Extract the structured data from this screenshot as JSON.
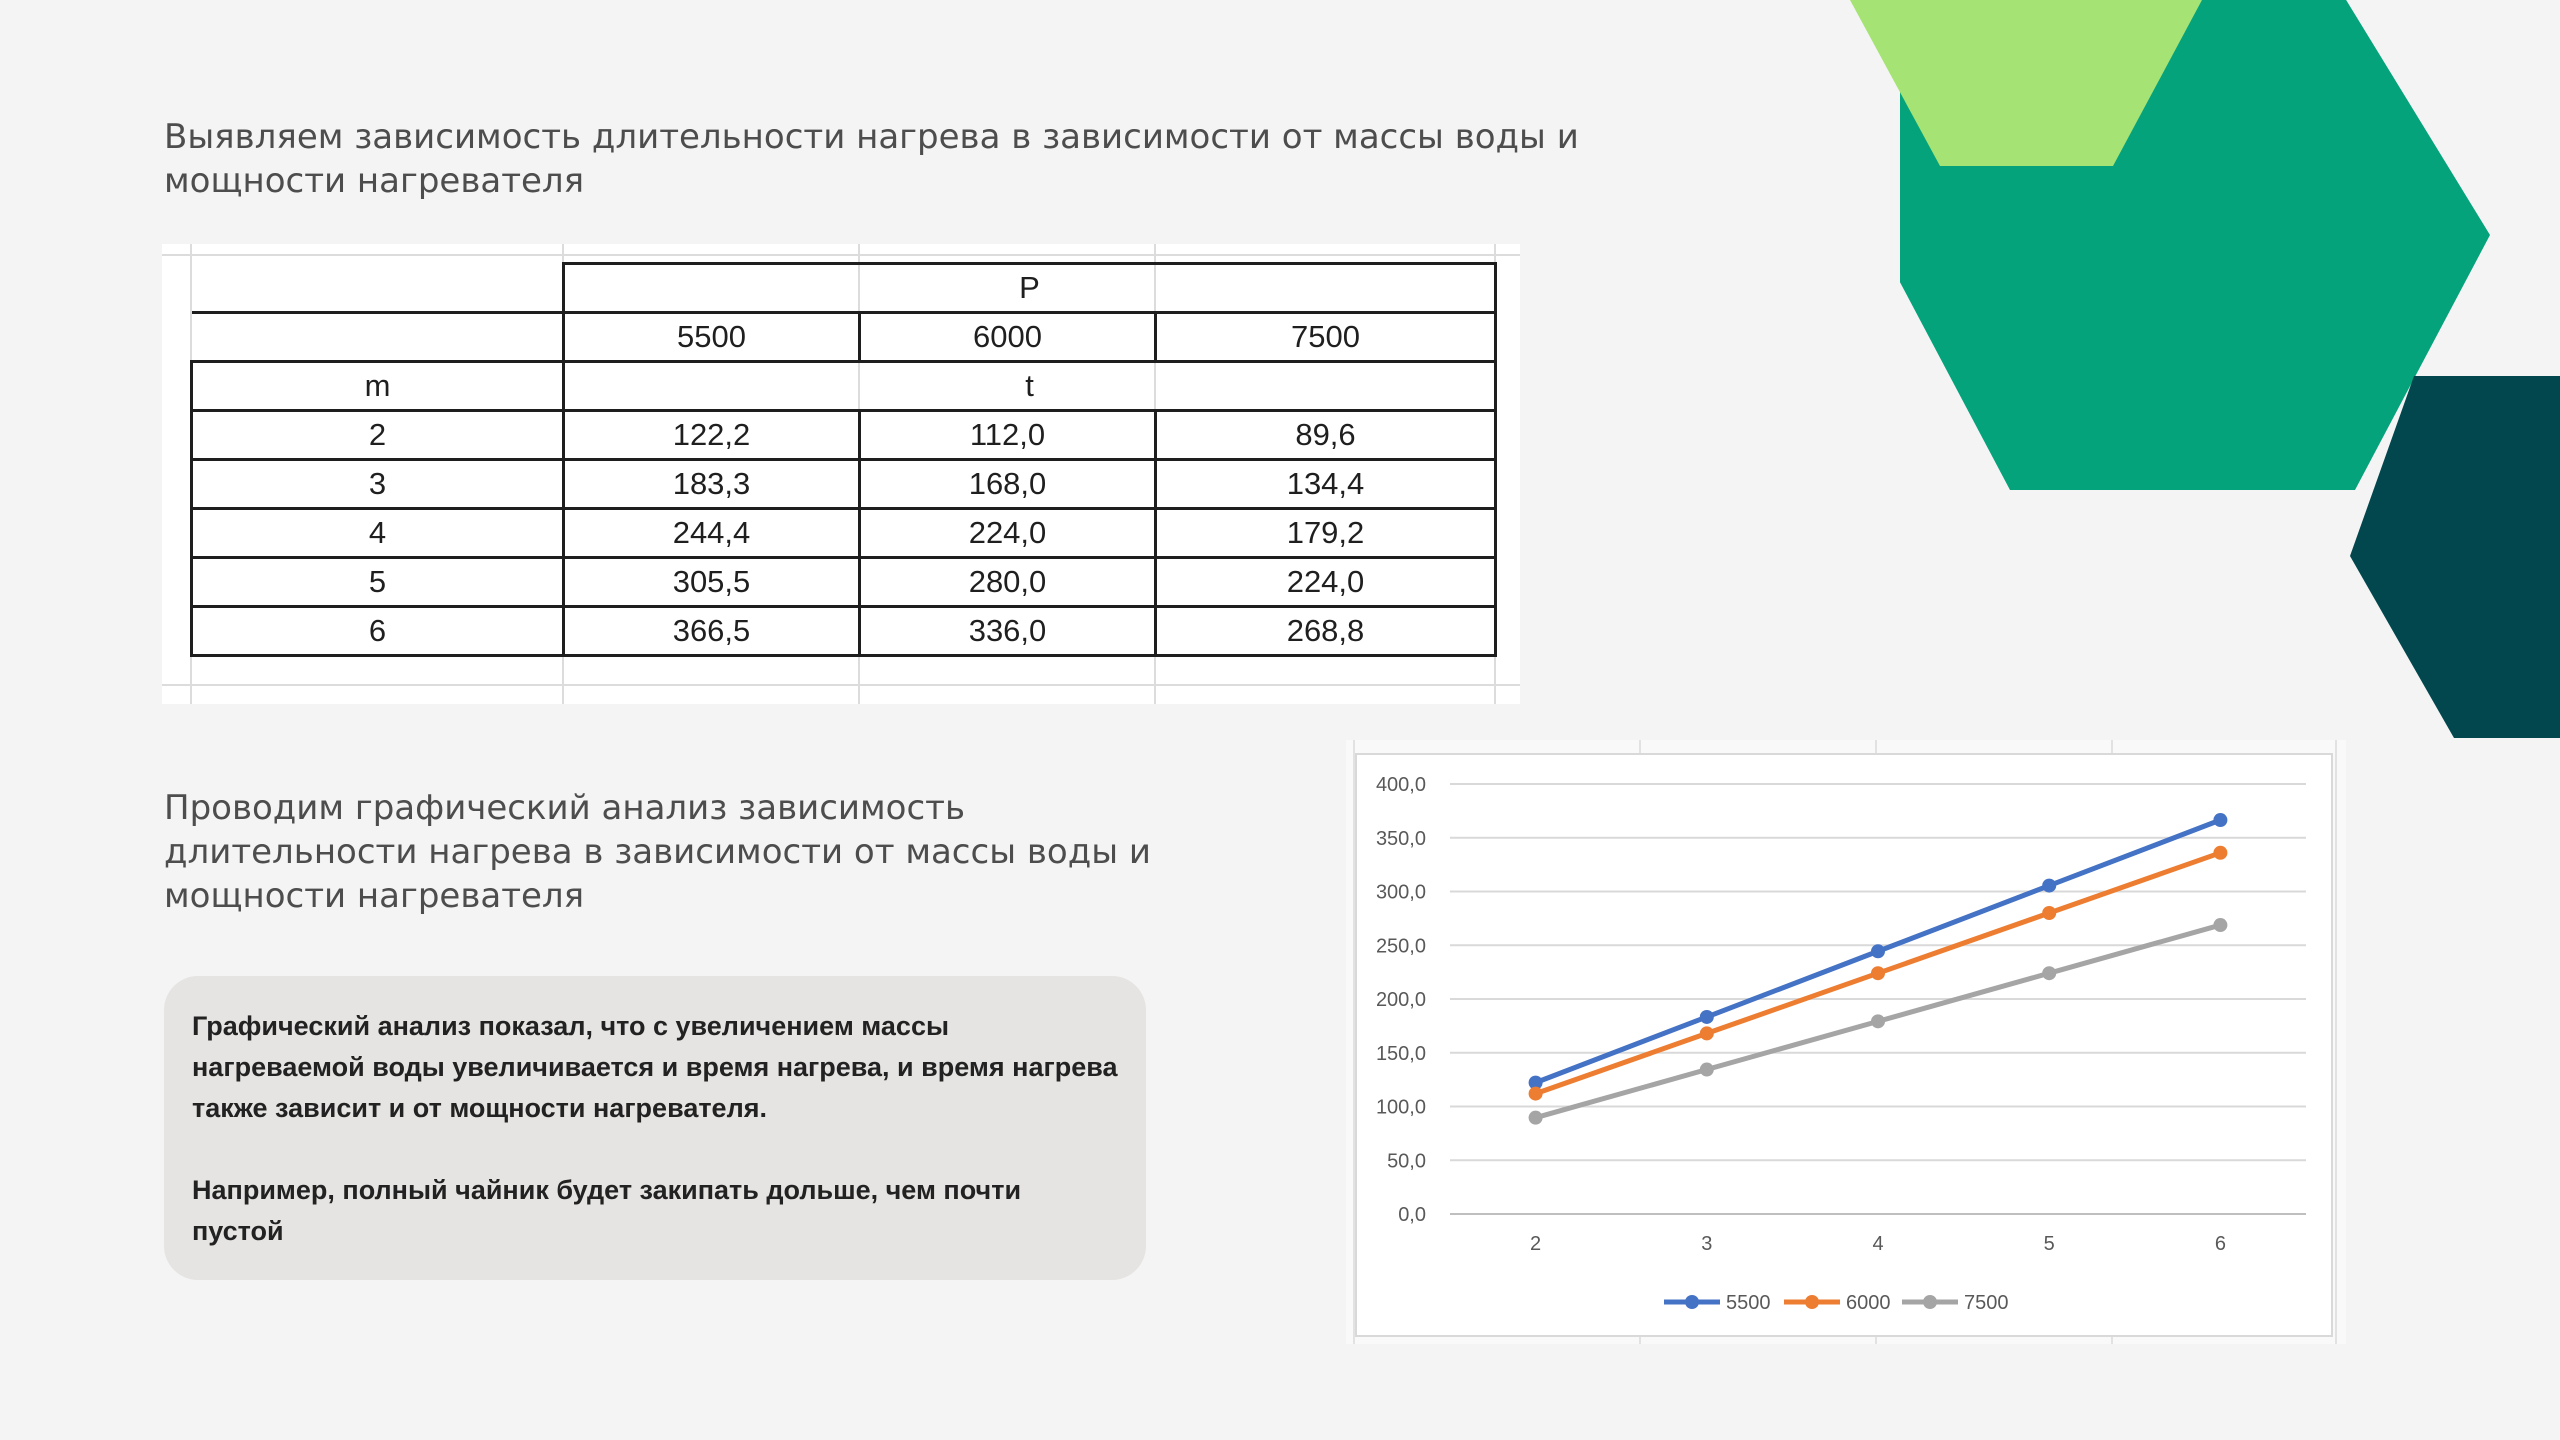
{
  "colors": {
    "background": "#f4f4f4",
    "hex_light_green": "#a4e374",
    "hex_teal": "#04a37b",
    "hex_dark": "#02474e",
    "series_5500": "#4472c4",
    "series_6000": "#ed7d31",
    "series_7500": "#a5a5a5",
    "note_box": "#e6e4e2"
  },
  "heading1": "Выявляем зависимость длительности нагрева в зависимости от массы воды и мощности нагревателя",
  "heading2": "Проводим графический анализ зависимость длительности нагрева в зависимости от массы воды и мощности нагревателя",
  "table": {
    "p_label": "P",
    "p_values": [
      "5500",
      "6000",
      "7500"
    ],
    "m_label": "m",
    "t_label": "t",
    "rows": [
      {
        "m": "2",
        "t": [
          "122,2",
          "112,0",
          "89,6"
        ]
      },
      {
        "m": "3",
        "t": [
          "183,3",
          "168,0",
          "134,4"
        ]
      },
      {
        "m": "4",
        "t": [
          "244,4",
          "224,0",
          "179,2"
        ]
      },
      {
        "m": "5",
        "t": [
          "305,5",
          "280,0",
          "224,0"
        ]
      },
      {
        "m": "6",
        "t": [
          "366,5",
          "336,0",
          "268,8"
        ]
      }
    ]
  },
  "note": {
    "paragraph1": "Графический анализ показал, что с увеличением массы нагреваемой воды увеличивается и время нагрева, и время нагрева также зависит и от мощности нагревателя.",
    "paragraph2": "Например, полный чайник будет закипать дольше, чем почти пустой"
  },
  "chart_data": {
    "type": "line",
    "x": [
      2,
      3,
      4,
      5,
      6
    ],
    "x_tick_labels": [
      "2",
      "3",
      "4",
      "5",
      "6"
    ],
    "y_tick_labels": [
      "0,0",
      "50,0",
      "100,0",
      "150,0",
      "200,0",
      "250,0",
      "300,0",
      "350,0",
      "400,0"
    ],
    "ylim": [
      0,
      400
    ],
    "y_step": 50,
    "grid": true,
    "legend_position": "bottom",
    "series": [
      {
        "name": "5500",
        "color": "#4472c4",
        "values": [
          122.2,
          183.3,
          244.4,
          305.5,
          366.5
        ]
      },
      {
        "name": "6000",
        "color": "#ed7d31",
        "values": [
          112.0,
          168.0,
          224.0,
          280.0,
          336.0
        ]
      },
      {
        "name": "7500",
        "color": "#a5a5a5",
        "values": [
          89.6,
          134.4,
          179.2,
          224.0,
          268.8
        ]
      }
    ]
  }
}
